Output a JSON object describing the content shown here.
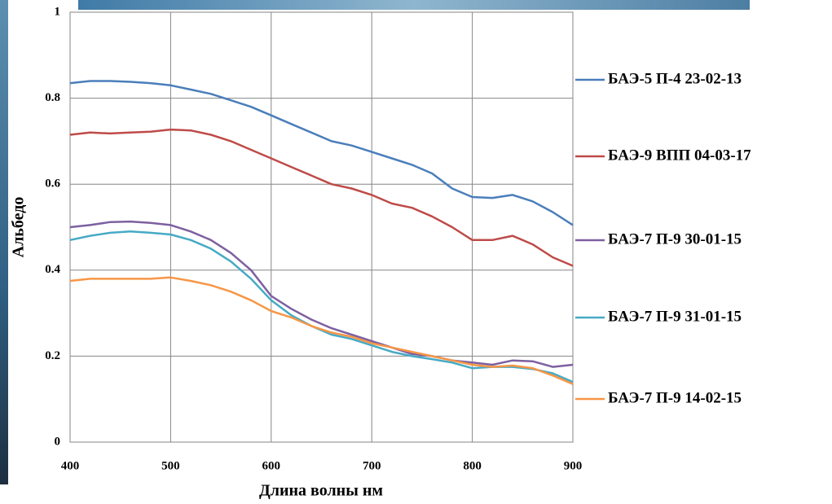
{
  "chart_data": {
    "type": "line",
    "x_label": "Длина волны нм",
    "y_label": "Альбедо",
    "x": [
      400,
      420,
      440,
      460,
      480,
      500,
      520,
      540,
      560,
      580,
      600,
      620,
      640,
      660,
      680,
      700,
      720,
      740,
      760,
      780,
      800,
      820,
      840,
      860,
      880,
      900
    ],
    "series": [
      {
        "name": "БАЭ-5 П-4 23-02-13",
        "color": "#4a7ebb",
        "values": [
          0.835,
          0.84,
          0.84,
          0.838,
          0.835,
          0.83,
          0.82,
          0.81,
          0.795,
          0.78,
          0.76,
          0.74,
          0.72,
          0.7,
          0.69,
          0.675,
          0.66,
          0.645,
          0.625,
          0.59,
          0.57,
          0.568,
          0.575,
          0.56,
          0.535,
          0.505
        ]
      },
      {
        "name": "БАЭ-9 ВПП 04-03-17",
        "color": "#be4b48",
        "values": [
          0.715,
          0.72,
          0.718,
          0.72,
          0.722,
          0.727,
          0.725,
          0.715,
          0.7,
          0.68,
          0.66,
          0.64,
          0.62,
          0.6,
          0.59,
          0.575,
          0.555,
          0.545,
          0.525,
          0.5,
          0.47,
          0.47,
          0.48,
          0.46,
          0.43,
          0.41
        ]
      },
      {
        "name": "БАЭ-7 П-9 30-01-15",
        "color": "#7d60a0",
        "values": [
          0.5,
          0.505,
          0.512,
          0.513,
          0.51,
          0.505,
          0.49,
          0.47,
          0.44,
          0.4,
          0.34,
          0.31,
          0.285,
          0.265,
          0.25,
          0.235,
          0.22,
          0.205,
          0.2,
          0.19,
          0.185,
          0.18,
          0.19,
          0.188,
          0.175,
          0.18
        ]
      },
      {
        "name": "БАЭ-7 П-9 31-01-15",
        "color": "#46aac5",
        "values": [
          0.47,
          0.48,
          0.487,
          0.49,
          0.487,
          0.483,
          0.47,
          0.45,
          0.42,
          0.38,
          0.33,
          0.295,
          0.27,
          0.25,
          0.24,
          0.225,
          0.21,
          0.2,
          0.193,
          0.185,
          0.172,
          0.175,
          0.175,
          0.17,
          0.16,
          0.14
        ]
      },
      {
        "name": "БАЭ-7 П-9 14-02-15",
        "color": "#f79646",
        "values": [
          0.375,
          0.38,
          0.38,
          0.38,
          0.38,
          0.383,
          0.375,
          0.365,
          0.35,
          0.33,
          0.305,
          0.29,
          0.27,
          0.255,
          0.245,
          0.23,
          0.22,
          0.21,
          0.2,
          0.19,
          0.18,
          0.175,
          0.178,
          0.172,
          0.155,
          0.135
        ]
      }
    ],
    "xlim": [
      400,
      900
    ],
    "xticks": [
      400,
      500,
      600,
      700,
      800,
      900
    ],
    "ylim": [
      0,
      1
    ],
    "yticks": [
      0,
      0.2,
      0.4,
      0.6,
      0.8,
      1
    ],
    "grid": true,
    "legend": "right"
  }
}
